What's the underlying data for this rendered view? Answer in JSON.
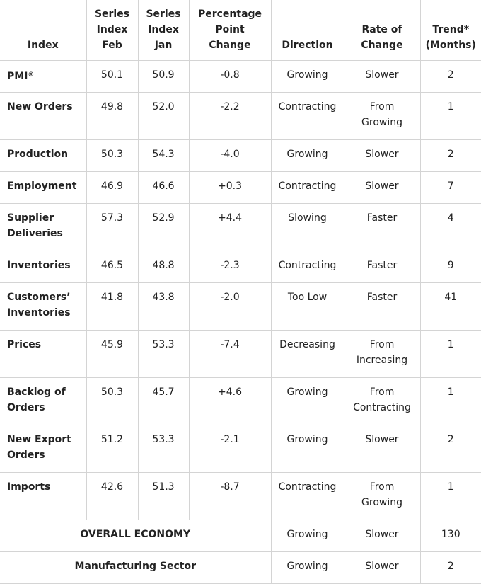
{
  "headers": {
    "index": "Index",
    "feb": [
      "Series",
      "Index",
      "Feb"
    ],
    "jan": [
      "Series",
      "Index",
      "Jan"
    ],
    "change": [
      "Percentage",
      "Point",
      "Change"
    ],
    "direction": "Direction",
    "rate": [
      "Rate of",
      "Change"
    ],
    "trend": [
      "Trend*",
      "(Months)"
    ]
  },
  "rows": [
    {
      "name": [
        "PMI"
      ],
      "sup": "®",
      "feb": "50.1",
      "jan": "50.9",
      "change": "-0.8",
      "direction": "Growing",
      "rate": [
        "Slower"
      ],
      "trend": "2"
    },
    {
      "name": [
        "New Orders"
      ],
      "feb": "49.8",
      "jan": "52.0",
      "change": "-2.2",
      "direction": "Contracting",
      "rate": [
        "From",
        "Growing"
      ],
      "trend": "1"
    },
    {
      "name": [
        "Production"
      ],
      "feb": "50.3",
      "jan": "54.3",
      "change": "-4.0",
      "direction": "Growing",
      "rate": [
        "Slower"
      ],
      "trend": "2"
    },
    {
      "name": [
        "Employment"
      ],
      "feb": "46.9",
      "jan": "46.6",
      "change": "+0.3",
      "direction": "Contracting",
      "rate": [
        "Slower"
      ],
      "trend": "7"
    },
    {
      "name": [
        "Supplier",
        "Deliveries"
      ],
      "feb": "57.3",
      "jan": "52.9",
      "change": "+4.4",
      "direction": "Slowing",
      "rate": [
        "Faster"
      ],
      "trend": "4"
    },
    {
      "name": [
        "Inventories"
      ],
      "feb": "46.5",
      "jan": "48.8",
      "change": "-2.3",
      "direction": "Contracting",
      "rate": [
        "Faster"
      ],
      "trend": "9"
    },
    {
      "name": [
        "Customers’",
        "Inventories"
      ],
      "feb": "41.8",
      "jan": "43.8",
      "change": "-2.0",
      "direction": "Too Low",
      "rate": [
        "Faster"
      ],
      "trend": "41"
    },
    {
      "name": [
        "Prices"
      ],
      "feb": "45.9",
      "jan": "53.3",
      "change": "-7.4",
      "direction": "Decreasing",
      "rate": [
        "From",
        "Increasing"
      ],
      "trend": "1"
    },
    {
      "name": [
        "Backlog of",
        "Orders"
      ],
      "feb": "50.3",
      "jan": "45.7",
      "change": "+4.6",
      "direction": "Growing",
      "rate": [
        "From",
        "Contracting"
      ],
      "trend": "1"
    },
    {
      "name": [
        "New Export",
        "Orders"
      ],
      "feb": "51.2",
      "jan": "53.3",
      "change": "-2.1",
      "direction": "Growing",
      "rate": [
        "Slower"
      ],
      "trend": "2"
    },
    {
      "name": [
        "Imports"
      ],
      "feb": "42.6",
      "jan": "51.3",
      "change": "-8.7",
      "direction": "Contracting",
      "rate": [
        "From",
        "Growing"
      ],
      "trend": "1"
    }
  ],
  "summary": [
    {
      "name": "OVERALL ECONOMY",
      "direction": "Growing",
      "rate": "Slower",
      "trend": "130"
    },
    {
      "name": "Manufacturing Sector",
      "direction": "Growing",
      "rate": "Slower",
      "trend": "2"
    }
  ]
}
